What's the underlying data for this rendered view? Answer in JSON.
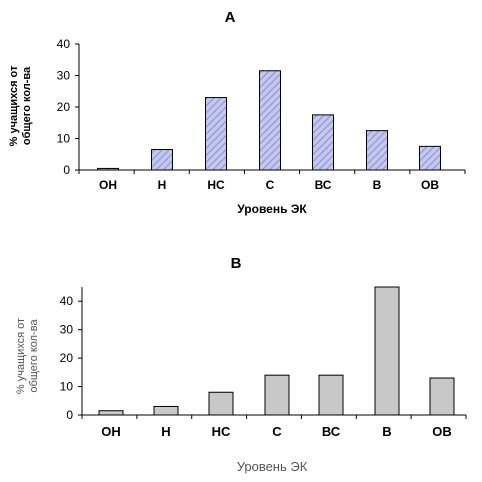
{
  "chart_data": [
    {
      "type": "bar",
      "title": "A",
      "xlabel": "Уровень ЭК",
      "ylabel_line1": "% учащихся от",
      "ylabel_line2": "общего кол-ва",
      "categories": [
        "ОН",
        "Н",
        "НС",
        "С",
        "ВС",
        "В",
        "ОВ"
      ],
      "values": [
        0.5,
        6.5,
        23,
        31.5,
        17.5,
        12.5,
        7.5
      ],
      "ylim": [
        0,
        40
      ],
      "yticks": [
        0,
        10,
        20,
        30,
        40
      ],
      "grid": false,
      "bar_fill": "hatched-blue",
      "colors": {
        "bar": "#b8bde8",
        "hatch": "#8a90d0",
        "outline": "#000000"
      }
    },
    {
      "type": "bar",
      "title": "B",
      "xlabel": "Уровень ЭК",
      "ylabel_line1": "% учащихся от",
      "ylabel_line2": "общего кол-ва",
      "categories": [
        "ОН",
        "Н",
        "НС",
        "С",
        "ВС",
        "В",
        "ОВ"
      ],
      "values": [
        1.5,
        3,
        8,
        14,
        14,
        45,
        13
      ],
      "ylim": [
        0,
        45
      ],
      "yticks": [
        0,
        10,
        20,
        30,
        40
      ],
      "grid": false,
      "bar_fill": "gray",
      "colors": {
        "bar": "#c8c8c8",
        "outline": "#000000"
      }
    }
  ]
}
